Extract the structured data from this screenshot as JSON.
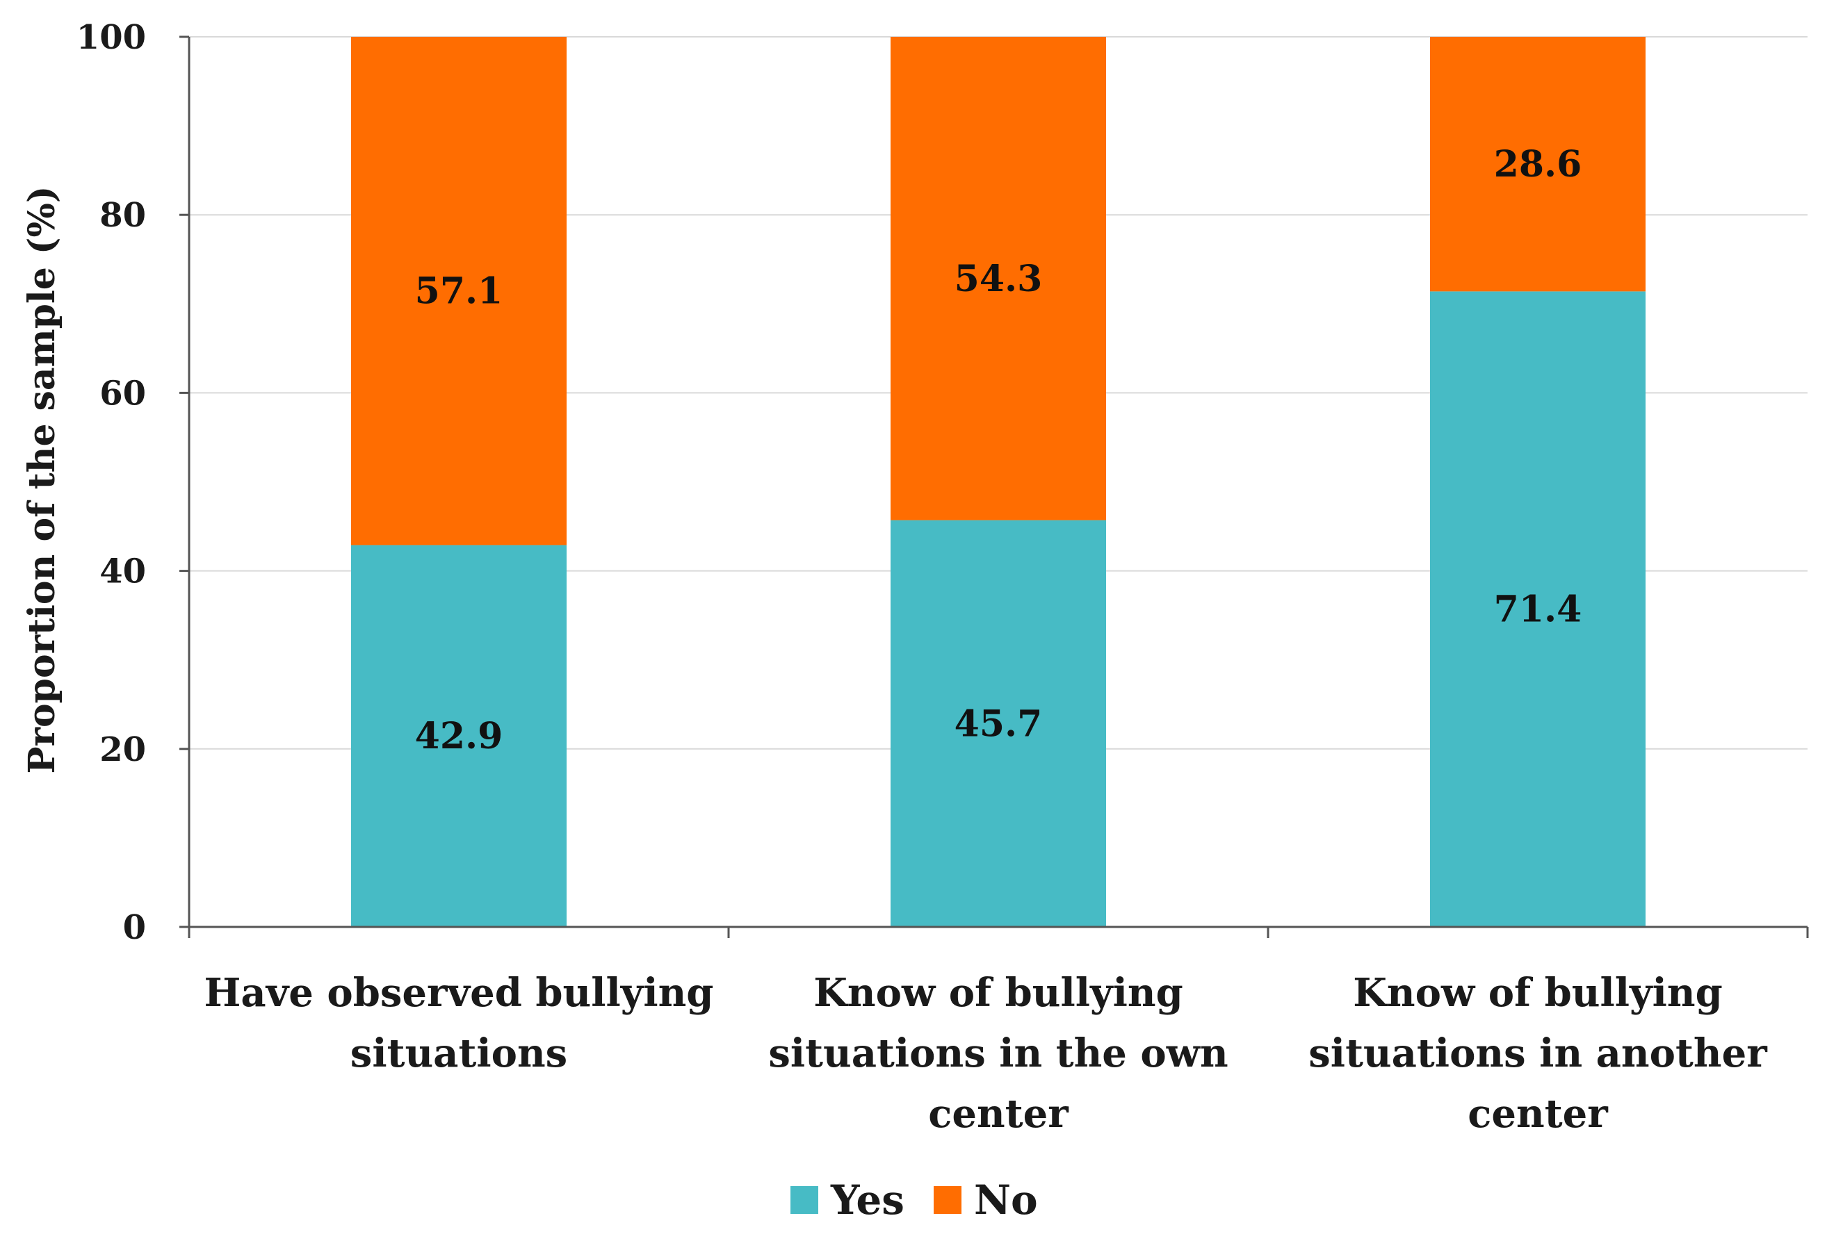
{
  "chart_data": {
    "type": "bar",
    "stacked": true,
    "categories": [
      [
        "Have observed bullying",
        "situations"
      ],
      [
        "Know of bullying",
        "situations in the own",
        "center"
      ],
      [
        "Know of bullying",
        "situations in another",
        "center"
      ]
    ],
    "series": [
      {
        "name": "Yes",
        "color": "#47BBC5",
        "values": [
          42.9,
          45.7,
          71.4
        ],
        "labels": [
          "42.9",
          "45.7",
          "71.4"
        ]
      },
      {
        "name": "No",
        "color": "#FF6D01",
        "values": [
          57.1,
          54.3,
          28.6
        ],
        "labels": [
          "57.1",
          "54.3",
          "28.6"
        ]
      }
    ],
    "title": "",
    "xlabel": "",
    "ylabel": "Proportion of the sample (%)",
    "ylim": [
      0,
      100
    ],
    "yticks": [
      0,
      20,
      40,
      60,
      80,
      100
    ],
    "grid": true,
    "legend": "bottom"
  }
}
